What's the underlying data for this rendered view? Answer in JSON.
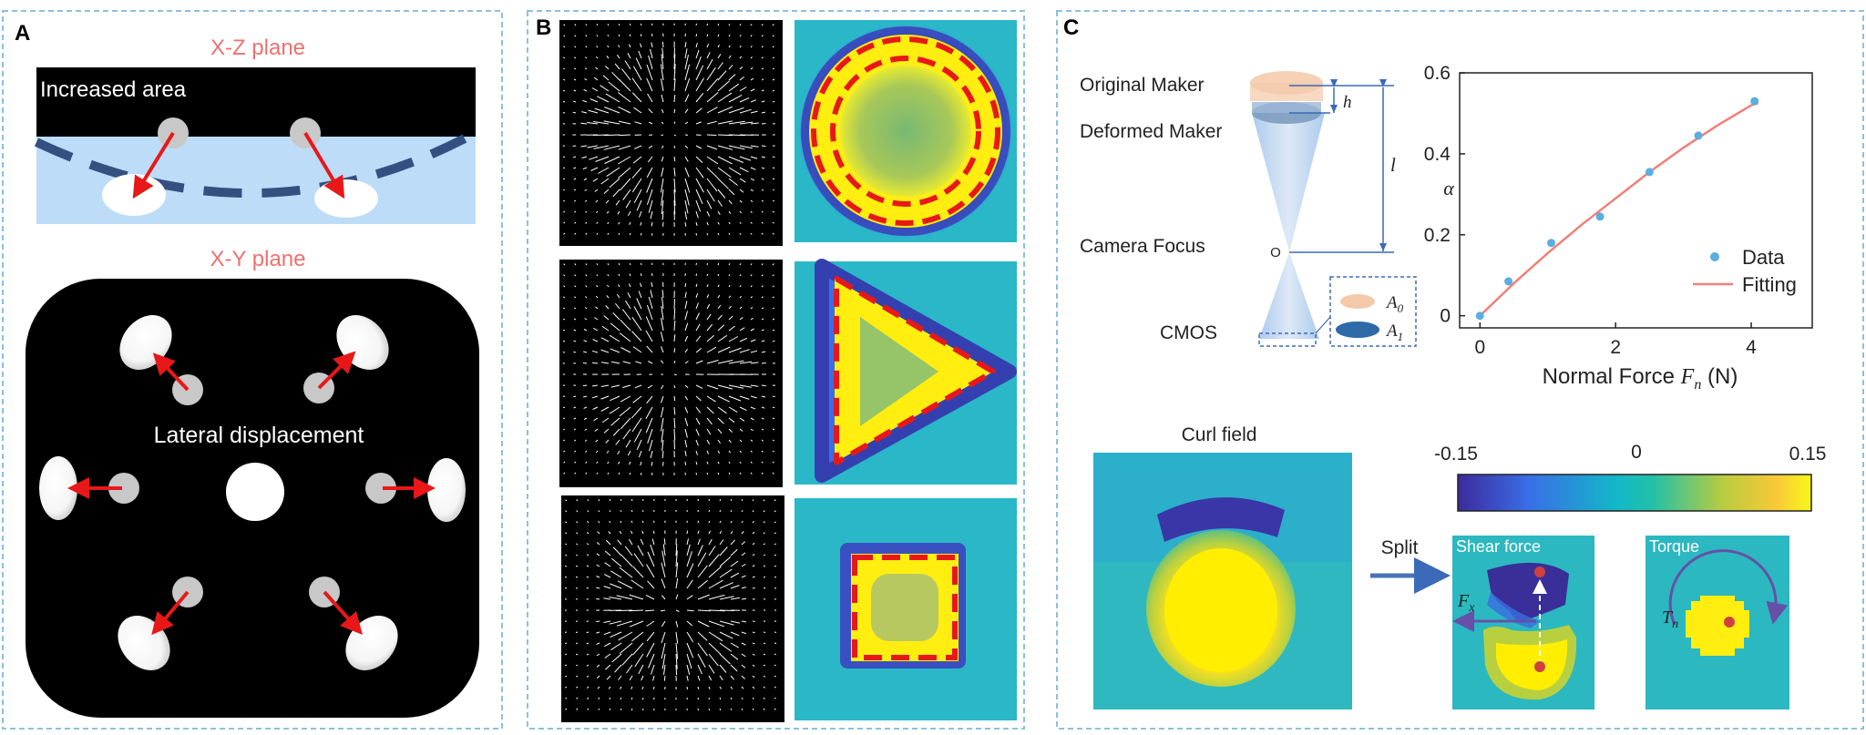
{
  "panel_a": {
    "letter": "A",
    "xz_title": "X-Z plane",
    "xz_label": "Increased area",
    "xy_title": "X-Y plane",
    "xy_label": "Lateral displacement"
  },
  "panel_b": {
    "letter": "B"
  },
  "panel_c": {
    "letter": "C",
    "diagram": {
      "original": "Original Maker",
      "deformed": "Deformed Maker",
      "focus": "Camera Focus",
      "cmos": "CMOS",
      "origin": "O",
      "h": "h",
      "l": "l",
      "a0": "A",
      "a0_sub": "0",
      "a1": "A",
      "a1_sub": "1"
    },
    "curl_title": "Curl field",
    "split_label": "Split",
    "shear_label": "Shear force",
    "torque_label": "Torque",
    "fx": "F",
    "fx_sub": "x",
    "tn": "T",
    "tn_sub": "n",
    "colorbar": {
      "min": "-0.15",
      "mid": "0",
      "max": "0.15"
    }
  },
  "chart_data": {
    "type": "scatter",
    "ylabel": "α",
    "xlabel": "Normal Force",
    "xlabel_var": "F",
    "xlabel_sub": "n",
    "xlabel_unit": "(N)",
    "xlim": [
      -0.3,
      4.9
    ],
    "ylim": [
      -0.03,
      0.6
    ],
    "xticks": [
      "0",
      "2",
      "4"
    ],
    "yticks": [
      "0",
      "0.2",
      "0.4",
      "0.6"
    ],
    "legend_position": "lower-right",
    "series": [
      {
        "name": "Data",
        "kind": "points",
        "color": "#5aaee0",
        "x": [
          0,
          0.42,
          1.05,
          1.77,
          2.5,
          3.22,
          4.05
        ],
        "y": [
          0.0,
          0.085,
          0.18,
          0.245,
          0.355,
          0.445,
          0.53
        ]
      },
      {
        "name": "Fitting",
        "kind": "line",
        "color": "#f08078",
        "x": [
          0,
          0.5,
          1,
          1.5,
          2,
          2.5,
          3,
          3.5,
          4,
          4.1
        ],
        "y": [
          0.0,
          0.08,
          0.155,
          0.225,
          0.29,
          0.355,
          0.415,
          0.47,
          0.52,
          0.525
        ]
      }
    ]
  }
}
